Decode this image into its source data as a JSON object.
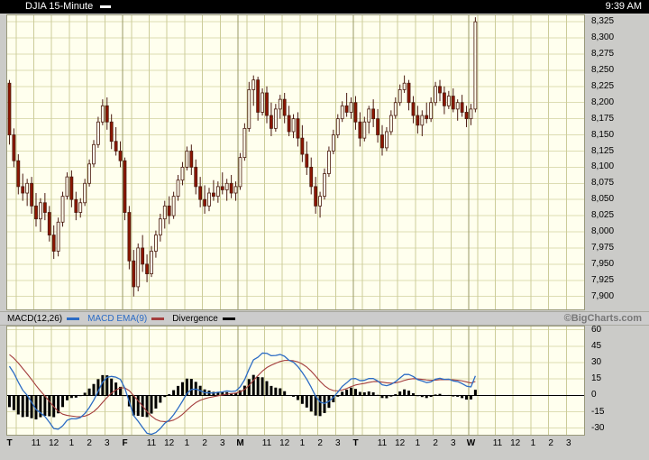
{
  "header": {
    "title": "DJIA 15-Minute",
    "time": "9:39 AM"
  },
  "branding": {
    "copyright": "©BigCharts.com"
  },
  "legend": {
    "items": [
      {
        "label": "MACD(12,26)",
        "label_color": "#000000",
        "marker_color": "#2B6BC4"
      },
      {
        "label": "MACD EMA(9)",
        "label_color": "#2B6BC4",
        "marker_color": "#A33C3C"
      },
      {
        "label": "Divergence",
        "label_color": "#000000",
        "marker_color": "#000000"
      }
    ]
  },
  "colors": {
    "page_bg": "#CBCBC8",
    "header_bg": "#000000",
    "header_fg": "#FFFFFF",
    "panel_bg": "#FFFFEE",
    "panel_border": "#99997A",
    "grid": "#CCCC99",
    "grid_day": "#999966",
    "grid_horizontal": "#DDDDB3",
    "candle_down_fill": "#8E1500",
    "candle_up_fill": "#FFFFEE",
    "candle_stroke": "#4A1A10",
    "macd_line": "#2B6BC4",
    "ema_line": "#A33C3C",
    "histogram": "#000000",
    "zero_line": "#000000",
    "legend_bar_bg": "#CCCCCC",
    "copyright_fg": "#777777"
  },
  "chart_data": [
    {
      "type": "candlestick",
      "symbol": "DJIA",
      "interval": "15-Minute",
      "ylim": [
        7880,
        8335
      ],
      "ytick_values": [
        8325,
        8300,
        8275,
        8250,
        8225,
        8200,
        8175,
        8150,
        8125,
        8100,
        8075,
        8050,
        8025,
        8000,
        7975,
        7950,
        7925,
        7900
      ],
      "ytick_labels": [
        "8,325",
        "8,300",
        "8,275",
        "8,250",
        "8,225",
        "8,200",
        "8,175",
        "8,150",
        "8,125",
        "8,100",
        "8,075",
        "8,050",
        "8,025",
        "8,000",
        "7,975",
        "7,950",
        "7,925",
        "7,900"
      ],
      "days": [
        {
          "label": "T"
        },
        {
          "label": "F"
        },
        {
          "label": "M"
        },
        {
          "label": "T"
        },
        {
          "label": "W"
        }
      ],
      "hour_labels": [
        "11",
        "12",
        "1",
        "2",
        "3"
      ],
      "hour_slots": [
        6,
        10,
        14,
        18,
        22
      ],
      "gridline_hour_slots": [
        2,
        6,
        10,
        14,
        18,
        22
      ],
      "bars_per_day": 26,
      "candles": [
        [
          8230,
          8235,
          8135,
          8150
        ],
        [
          8150,
          8160,
          8100,
          8110
        ],
        [
          8110,
          8120,
          8058,
          8070
        ],
        [
          8070,
          8090,
          8048,
          8060
        ],
        [
          8060,
          8082,
          8040,
          8075
        ],
        [
          8075,
          8085,
          8028,
          8040
        ],
        [
          8040,
          8060,
          8008,
          8020
        ],
        [
          8020,
          8052,
          8000,
          8045
        ],
        [
          8045,
          8060,
          8018,
          8030
        ],
        [
          8030,
          8040,
          7985,
          7995
        ],
        [
          7995,
          8010,
          7958,
          7970
        ],
        [
          7970,
          8022,
          7962,
          8015
        ],
        [
          8015,
          8062,
          8008,
          8055
        ],
        [
          8055,
          8092,
          8050,
          8085
        ],
        [
          8085,
          8095,
          8038,
          8050
        ],
        [
          8050,
          8062,
          8018,
          8030
        ],
        [
          8030,
          8052,
          8022,
          8045
        ],
        [
          8045,
          8082,
          8040,
          8075
        ],
        [
          8075,
          8112,
          8070,
          8105
        ],
        [
          8105,
          8142,
          8100,
          8135
        ],
        [
          8135,
          8178,
          8130,
          8170
        ],
        [
          8170,
          8205,
          8165,
          8195
        ],
        [
          8195,
          8208,
          8158,
          8170
        ],
        [
          8170,
          8182,
          8128,
          8140
        ],
        [
          8140,
          8162,
          8118,
          8125
        ],
        [
          8125,
          8140,
          8100,
          8110
        ],
        [
          8110,
          8115,
          8018,
          8030
        ],
        [
          8030,
          8040,
          7942,
          7955
        ],
        [
          7955,
          7972,
          7900,
          7915
        ],
        [
          7915,
          7982,
          7908,
          7975
        ],
        [
          7975,
          7995,
          7938,
          7950
        ],
        [
          7950,
          7965,
          7922,
          7935
        ],
        [
          7935,
          7978,
          7930,
          7970
        ],
        [
          7970,
          8002,
          7960,
          7995
        ],
        [
          7995,
          8028,
          7985,
          8020
        ],
        [
          8020,
          8048,
          8005,
          8040
        ],
        [
          8040,
          8055,
          8012,
          8025
        ],
        [
          8025,
          8062,
          8020,
          8055
        ],
        [
          8055,
          8088,
          8048,
          8080
        ],
        [
          8080,
          8108,
          8072,
          8100
        ],
        [
          8100,
          8132,
          8095,
          8125
        ],
        [
          8125,
          8135,
          8088,
          8100
        ],
        [
          8100,
          8112,
          8058,
          8070
        ],
        [
          8070,
          8085,
          8038,
          8050
        ],
        [
          8050,
          8072,
          8028,
          8040
        ],
        [
          8040,
          8068,
          8032,
          8060
        ],
        [
          8060,
          8080,
          8048,
          8055
        ],
        [
          8055,
          8078,
          8045,
          8070
        ],
        [
          8070,
          8092,
          8058,
          8065
        ],
        [
          8065,
          8082,
          8048,
          8075
        ],
        [
          8075,
          8088,
          8052,
          8060
        ],
        [
          8060,
          8078,
          8048,
          8070
        ],
        [
          8070,
          8122,
          8065,
          8115
        ],
        [
          8115,
          8168,
          8110,
          8160
        ],
        [
          8160,
          8232,
          8155,
          8220
        ],
        [
          8220,
          8242,
          8195,
          8235
        ],
        [
          8235,
          8240,
          8172,
          8185
        ],
        [
          8185,
          8222,
          8180,
          8215
        ],
        [
          8215,
          8225,
          8168,
          8180
        ],
        [
          8180,
          8200,
          8148,
          8160
        ],
        [
          8160,
          8198,
          8155,
          8190
        ],
        [
          8190,
          8212,
          8175,
          8205
        ],
        [
          8205,
          8215,
          8168,
          8180
        ],
        [
          8180,
          8195,
          8148,
          8155
        ],
        [
          8155,
          8182,
          8145,
          8175
        ],
        [
          8175,
          8185,
          8132,
          8145
        ],
        [
          8145,
          8165,
          8108,
          8120
        ],
        [
          8120,
          8140,
          8088,
          8100
        ],
        [
          8100,
          8115,
          8058,
          8070
        ],
        [
          8070,
          8085,
          8028,
          8040
        ],
        [
          8040,
          8062,
          8022,
          8055
        ],
        [
          8055,
          8098,
          8050,
          8090
        ],
        [
          8090,
          8132,
          8085,
          8125
        ],
        [
          8125,
          8158,
          8120,
          8150
        ],
        [
          8150,
          8182,
          8145,
          8175
        ],
        [
          8175,
          8202,
          8170,
          8195
        ],
        [
          8195,
          8215,
          8178,
          8185
        ],
        [
          8185,
          8208,
          8175,
          8200
        ],
        [
          8200,
          8210,
          8158,
          8170
        ],
        [
          8170,
          8185,
          8132,
          8145
        ],
        [
          8145,
          8178,
          8140,
          8170
        ],
        [
          8170,
          8195,
          8152,
          8190
        ],
        [
          8190,
          8205,
          8162,
          8175
        ],
        [
          8175,
          8190,
          8138,
          8150
        ],
        [
          8150,
          8165,
          8118,
          8130
        ],
        [
          8130,
          8162,
          8125,
          8155
        ],
        [
          8155,
          8188,
          8150,
          8180
        ],
        [
          8180,
          8208,
          8175,
          8200
        ],
        [
          8200,
          8228,
          8195,
          8220
        ],
        [
          8220,
          8242,
          8215,
          8230
        ],
        [
          8230,
          8235,
          8188,
          8200
        ],
        [
          8200,
          8210,
          8168,
          8180
        ],
        [
          8180,
          8195,
          8152,
          8165
        ],
        [
          8165,
          8188,
          8148,
          8180
        ],
        [
          8180,
          8200,
          8168,
          8175
        ],
        [
          8175,
          8208,
          8170,
          8200
        ],
        [
          8200,
          8232,
          8195,
          8225
        ],
        [
          8225,
          8235,
          8202,
          8215
        ],
        [
          8215,
          8225,
          8182,
          8195
        ],
        [
          8195,
          8218,
          8190,
          8210
        ],
        [
          8210,
          8222,
          8185,
          8190
        ],
        [
          8190,
          8205,
          8172,
          8200
        ],
        [
          8200,
          8212,
          8178,
          8185
        ],
        [
          8185,
          8195,
          8162,
          8175
        ],
        [
          8175,
          8198,
          8165,
          8190
        ],
        [
          8190,
          8332,
          8185,
          8325
        ]
      ]
    },
    {
      "type": "macd",
      "fast": 12,
      "slow": 26,
      "signal_period": 9,
      "ylim": [
        -36,
        63
      ],
      "ytick_values": [
        60,
        45,
        30,
        15,
        0,
        -15,
        -30
      ],
      "ytick_labels": [
        "60",
        "45",
        "30",
        "15",
        "0",
        "-15",
        "-30"
      ],
      "seed": {
        "ema_fast_offset": 15,
        "ema_slow_offset": -15,
        "signal": 40
      }
    }
  ]
}
